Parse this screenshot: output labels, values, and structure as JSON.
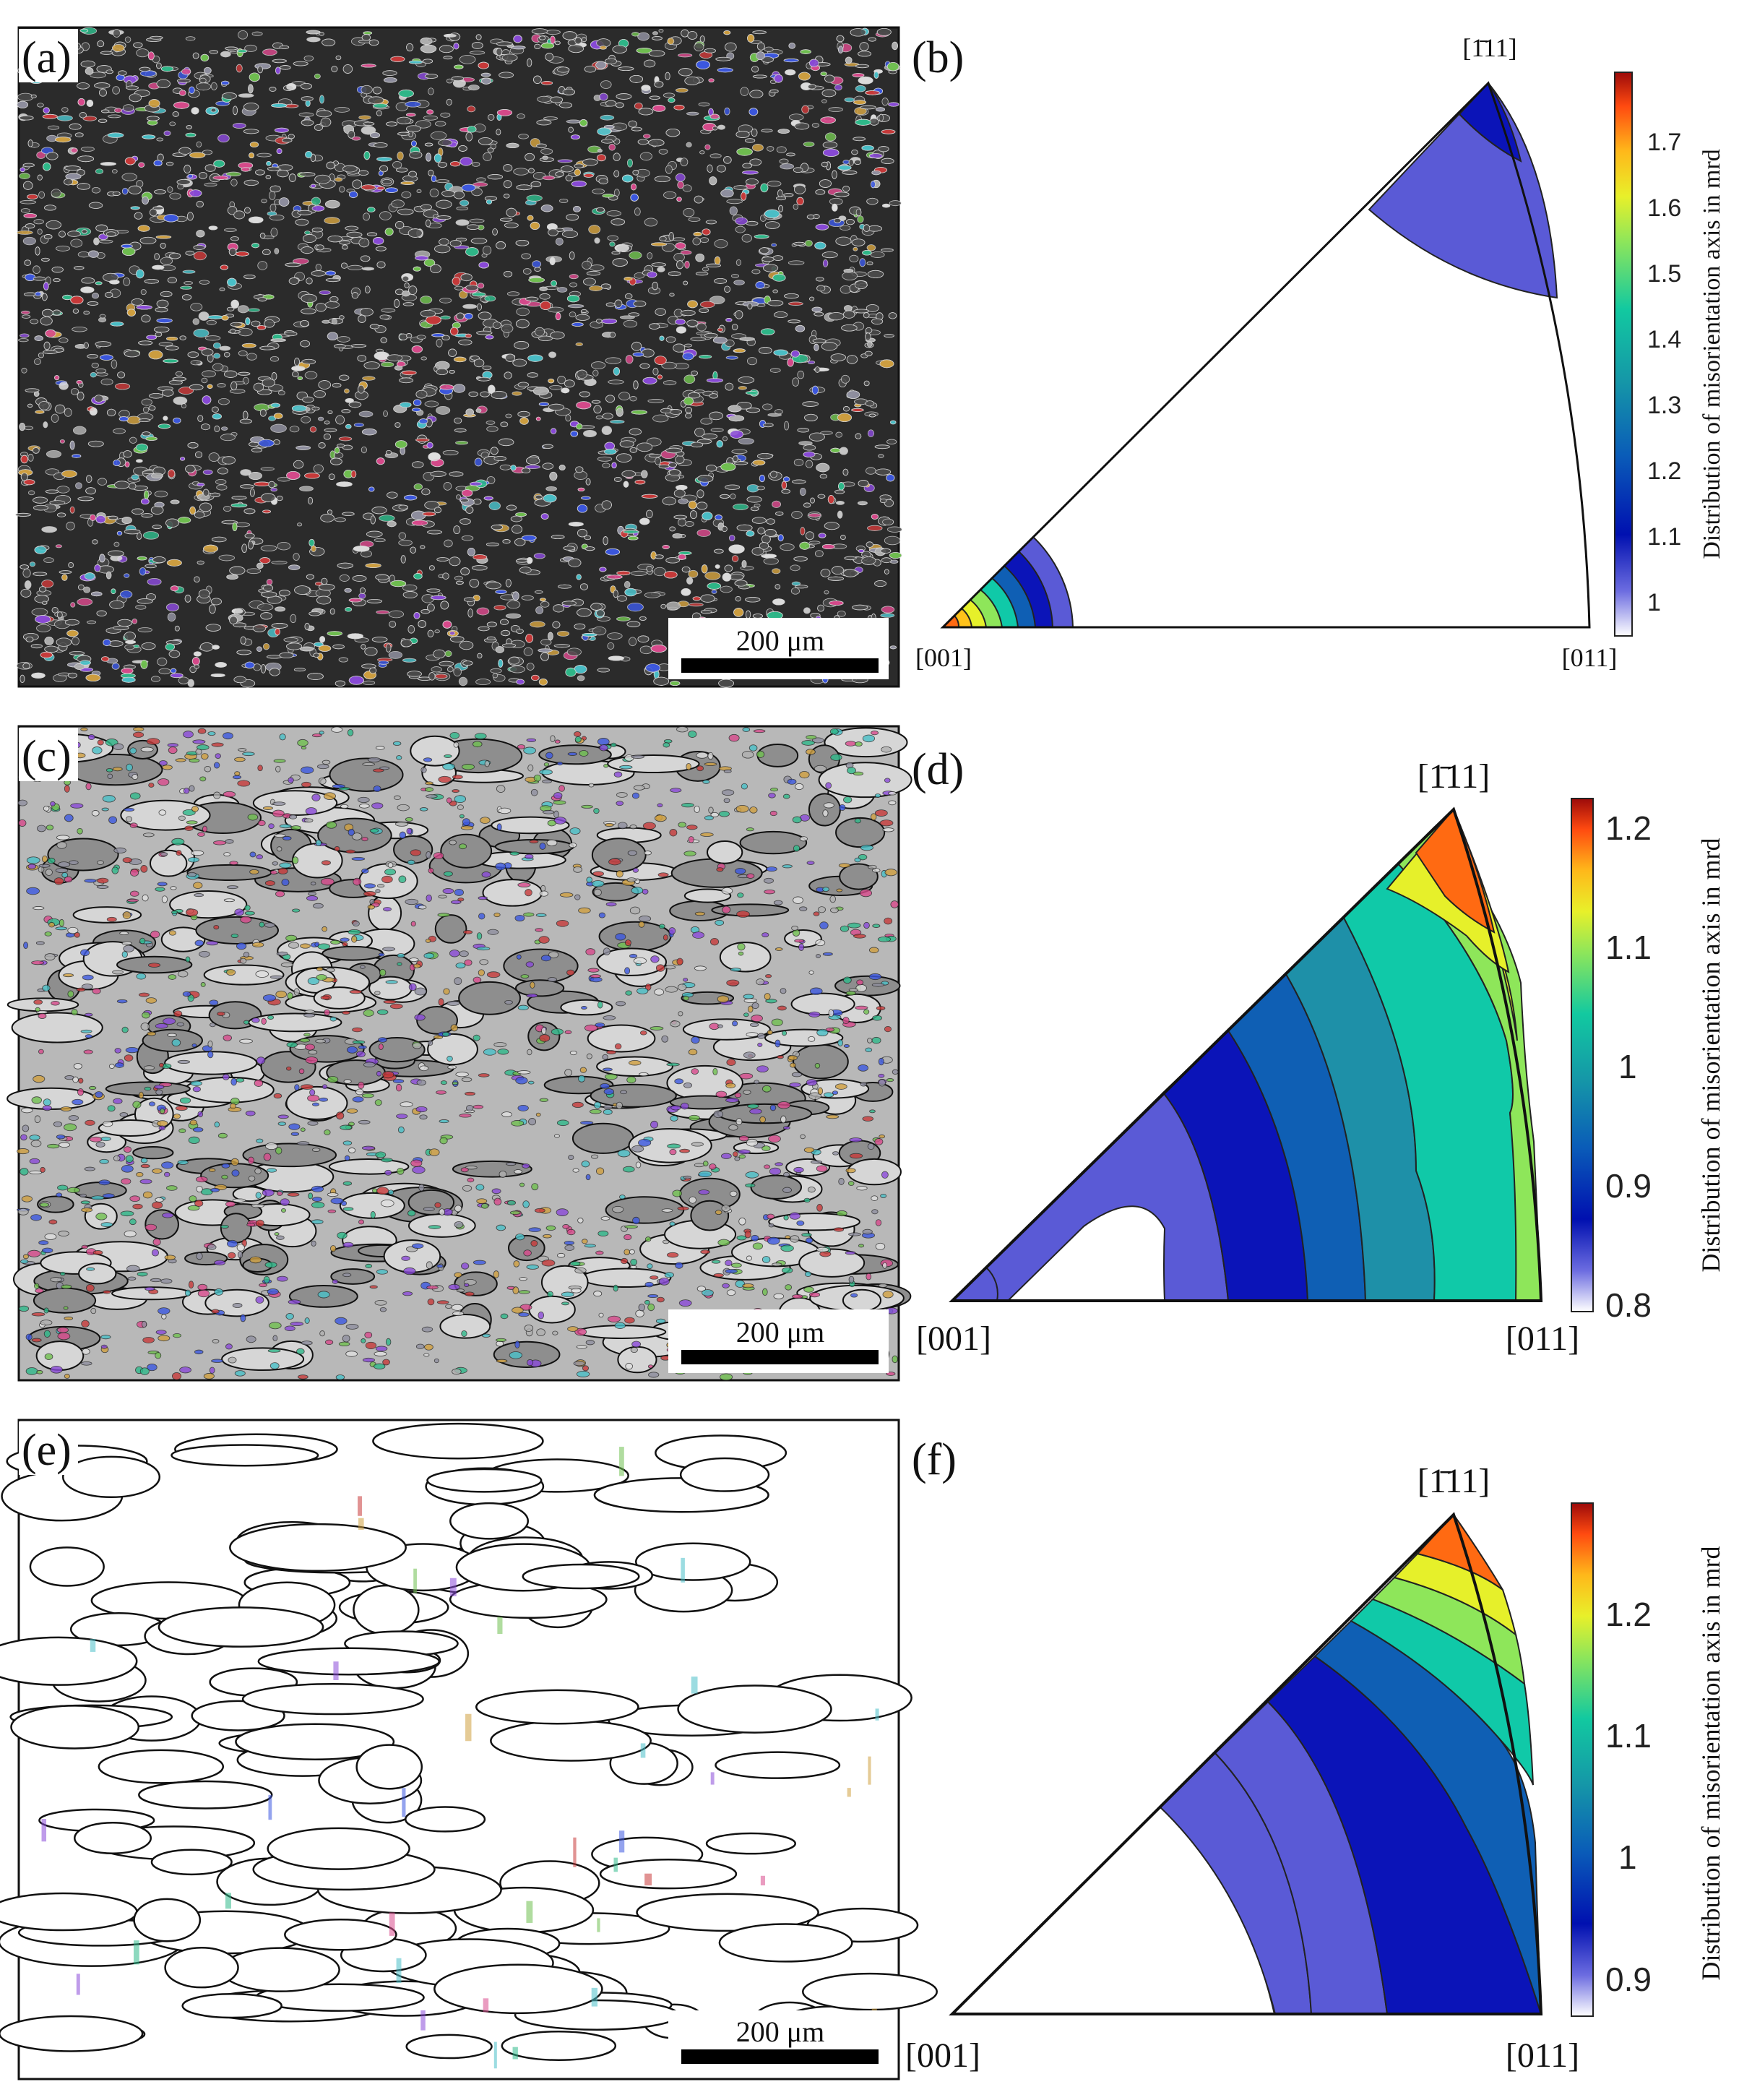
{
  "panels": {
    "a": {
      "label": "(a)",
      "scale_bar": "200 μm",
      "style": "dense"
    },
    "b": {
      "label": "(b)",
      "corners": {
        "top": "[1̄11]",
        "left": "[001]",
        "right": "[011]"
      },
      "colorbar": {
        "title": "Distribution of misorientation axis in mrd",
        "ticks": [
          "1",
          "1.1",
          "1.2",
          "1.3",
          "1.4",
          "1.5",
          "1.6",
          "1.7"
        ],
        "range": [
          0.93,
          1.79
        ]
      }
    },
    "c": {
      "label": "(c)",
      "scale_bar": "200 μm",
      "style": "mixed"
    },
    "d": {
      "label": "(d)",
      "corners": {
        "top": "[1̄11]",
        "left": "[001]",
        "right": "[011]"
      },
      "colorbar": {
        "title": "Distribution of misorientation axis in mrd",
        "ticks": [
          "0.8",
          "0.9",
          "1",
          "1.1",
          "1.2"
        ],
        "range": [
          0.8,
          1.23
        ]
      }
    },
    "e": {
      "label": "(e)",
      "scale_bar": "200 μm",
      "style": "coarse"
    },
    "f": {
      "label": "(f)",
      "corners": {
        "top": "[1̄11]",
        "left": "[001]",
        "right": "[011]"
      },
      "colorbar": {
        "title": "Distribution of misorientation axis in mrd",
        "ticks": [
          "0.9",
          "1",
          "1.1",
          "1.2"
        ],
        "range": [
          0.86,
          1.28
        ]
      }
    }
  },
  "colors": {
    "jet": [
      "#ffffff",
      "#5a5ad6",
      "#0b14b8",
      "#0f5fb4",
      "#1e90a8",
      "#10c9a8",
      "#2ee0a0",
      "#8ee65a",
      "#e6f02a",
      "#ffc21a",
      "#ff6a12",
      "#e0200c",
      "#a00a0a"
    ]
  }
}
